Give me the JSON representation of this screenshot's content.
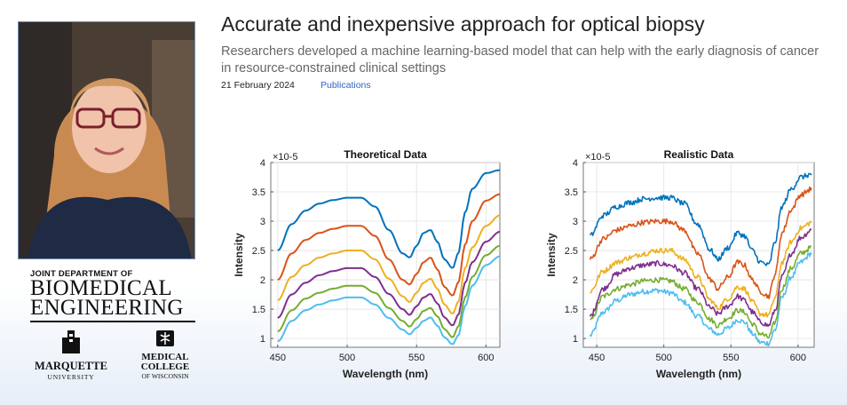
{
  "article": {
    "title": "Accurate and inexpensive approach for optical biopsy",
    "subtitle": "Researchers developed a machine learning-based model that can help with the early diagnosis of cancer in resource-constrained clinical settings",
    "date": "21 February 2024",
    "category_link": "Publications"
  },
  "logos": {
    "dept_line1": "JOINT DEPARTMENT OF",
    "dept_line2": "BIOMEDICAL",
    "dept_line3": "ENGINEERING",
    "marquette_name": "MARQUETTE",
    "marquette_sub": "UNIVERSITY",
    "mcw_line1": "MEDICAL",
    "mcw_line2": "COLLEGE",
    "mcw_line3": "OF WISCONSIN"
  },
  "colors": {
    "series": [
      "#0072BD",
      "#D95319",
      "#EDB120",
      "#7E2F8E",
      "#77AC30",
      "#4DBEEE"
    ],
    "link": "#2a67c2"
  },
  "chart_data": [
    {
      "type": "line",
      "title": "Theoretical Data",
      "xlabel": "Wavelength (nm)",
      "ylabel": "Intensity",
      "y_exponent": "×10-5",
      "xlim": [
        445,
        610
      ],
      "ylim": [
        0.85,
        4.0
      ],
      "xticks": [
        450,
        500,
        550,
        600
      ],
      "yticks": [
        1,
        1.5,
        2,
        2.5,
        3,
        3.5,
        4
      ],
      "ytick_labels": [
        "1",
        "1.5",
        "2",
        "2.5",
        "3",
        "3.5",
        "4"
      ],
      "grid": true,
      "noise": false,
      "x": [
        450,
        460,
        470,
        480,
        490,
        500,
        510,
        520,
        530,
        540,
        545,
        550,
        555,
        560,
        565,
        570,
        576,
        580,
        585,
        590,
        600,
        610
      ],
      "series": [
        {
          "values": [
            2.5,
            2.95,
            3.18,
            3.3,
            3.36,
            3.4,
            3.4,
            3.25,
            2.85,
            2.45,
            2.38,
            2.58,
            2.8,
            2.85,
            2.65,
            2.35,
            2.2,
            2.45,
            3.15,
            3.55,
            3.82,
            3.87
          ]
        },
        {
          "values": [
            2.0,
            2.45,
            2.68,
            2.8,
            2.87,
            2.92,
            2.92,
            2.75,
            2.35,
            2.0,
            1.92,
            2.1,
            2.3,
            2.38,
            2.18,
            1.88,
            1.73,
            1.95,
            2.6,
            3.0,
            3.35,
            3.46
          ]
        },
        {
          "values": [
            1.65,
            2.05,
            2.25,
            2.38,
            2.45,
            2.5,
            2.5,
            2.35,
            2.02,
            1.72,
            1.62,
            1.78,
            1.95,
            2.02,
            1.85,
            1.58,
            1.42,
            1.62,
            2.2,
            2.55,
            2.92,
            3.1
          ]
        },
        {
          "values": [
            1.35,
            1.75,
            1.95,
            2.08,
            2.15,
            2.2,
            2.2,
            2.05,
            1.76,
            1.5,
            1.4,
            1.55,
            1.7,
            1.76,
            1.6,
            1.36,
            1.22,
            1.4,
            1.95,
            2.3,
            2.65,
            2.82
          ]
        },
        {
          "values": [
            1.12,
            1.48,
            1.68,
            1.78,
            1.85,
            1.9,
            1.9,
            1.78,
            1.52,
            1.3,
            1.2,
            1.33,
            1.47,
            1.52,
            1.38,
            1.16,
            1.02,
            1.2,
            1.7,
            2.05,
            2.42,
            2.58
          ]
        },
        {
          "values": [
            0.95,
            1.3,
            1.48,
            1.58,
            1.65,
            1.7,
            1.7,
            1.58,
            1.35,
            1.15,
            1.07,
            1.18,
            1.3,
            1.36,
            1.22,
            1.02,
            0.9,
            1.05,
            1.55,
            1.9,
            2.25,
            2.4
          ]
        }
      ]
    },
    {
      "type": "line",
      "title": "Realistic Data",
      "xlabel": "Wavelength (nm)",
      "ylabel": "Intensity",
      "y_exponent": "×10-5",
      "xlim": [
        440,
        612
      ],
      "ylim": [
        0.85,
        4.0
      ],
      "xticks": [
        450,
        500,
        550,
        600
      ],
      "yticks": [
        1,
        1.5,
        2,
        2.5,
        3,
        3.5,
        4
      ],
      "ytick_labels": [
        "1",
        "1.5",
        "2",
        "2.5",
        "3",
        "3.5",
        "4"
      ],
      "grid": true,
      "noise": true,
      "x": [
        445,
        455,
        465,
        475,
        485,
        495,
        505,
        515,
        525,
        535,
        540,
        548,
        555,
        560,
        566,
        572,
        578,
        583,
        588,
        595,
        602,
        610
      ],
      "series": [
        {
          "values": [
            2.75,
            3.1,
            3.25,
            3.32,
            3.38,
            3.4,
            3.4,
            3.3,
            2.95,
            2.5,
            2.35,
            2.55,
            2.8,
            2.75,
            2.5,
            2.3,
            2.25,
            2.65,
            3.25,
            3.55,
            3.75,
            3.8
          ]
        },
        {
          "values": [
            2.35,
            2.7,
            2.85,
            2.92,
            2.98,
            3.0,
            3.0,
            2.85,
            2.45,
            2.0,
            1.85,
            2.05,
            2.3,
            2.25,
            2.0,
            1.8,
            1.72,
            2.1,
            2.8,
            3.2,
            3.45,
            3.55
          ]
        },
        {
          "values": [
            1.8,
            2.15,
            2.3,
            2.38,
            2.45,
            2.5,
            2.5,
            2.35,
            2.05,
            1.65,
            1.52,
            1.68,
            1.88,
            1.85,
            1.62,
            1.42,
            1.4,
            1.7,
            2.3,
            2.65,
            2.88,
            2.98
          ]
        },
        {
          "values": [
            1.38,
            1.85,
            2.1,
            2.2,
            2.25,
            2.28,
            2.25,
            2.12,
            1.85,
            1.52,
            1.42,
            1.55,
            1.72,
            1.65,
            1.45,
            1.28,
            1.22,
            1.48,
            2.05,
            2.45,
            2.72,
            2.85
          ]
        },
        {
          "values": [
            1.3,
            1.72,
            1.85,
            1.92,
            1.98,
            2.0,
            1.98,
            1.85,
            1.62,
            1.32,
            1.22,
            1.35,
            1.48,
            1.45,
            1.25,
            1.08,
            1.02,
            1.28,
            1.85,
            2.2,
            2.45,
            2.55
          ]
        },
        {
          "values": [
            1.05,
            1.45,
            1.65,
            1.75,
            1.8,
            1.82,
            1.78,
            1.62,
            1.38,
            1.15,
            1.07,
            1.18,
            1.32,
            1.28,
            1.08,
            0.93,
            0.92,
            1.15,
            1.7,
            2.05,
            2.3,
            2.45
          ]
        }
      ]
    }
  ]
}
